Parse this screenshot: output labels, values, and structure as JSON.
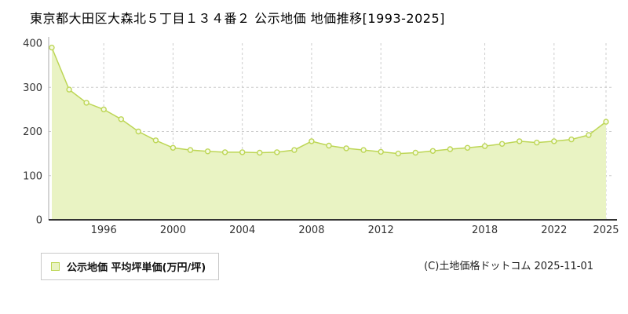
{
  "page": {
    "title": "東京都大田区大森北５丁目１３４番２ 公示地価 地価推移[1993-2025]",
    "copyright": "(C)土地価格ドットコム 2025-11-01"
  },
  "legend": {
    "label": "公示地価 平均坪単価(万円/坪)"
  },
  "chart_data": {
    "type": "area",
    "title": "東京都大田区大森北５丁目１３４番２ 公示地価 地価推移[1993-2025]",
    "xlabel": "",
    "ylabel": "平均坪単価(万円/坪)",
    "x": [
      1993,
      1994,
      1995,
      1996,
      1997,
      1998,
      1999,
      2000,
      2001,
      2002,
      2003,
      2004,
      2005,
      2006,
      2007,
      2008,
      2009,
      2010,
      2011,
      2012,
      2013,
      2014,
      2015,
      2016,
      2017,
      2018,
      2019,
      2020,
      2021,
      2022,
      2023,
      2024,
      2025
    ],
    "values": [
      390,
      295,
      265,
      250,
      228,
      200,
      180,
      163,
      158,
      155,
      153,
      153,
      152,
      153,
      158,
      178,
      168,
      162,
      158,
      154,
      150,
      152,
      156,
      160,
      163,
      167,
      172,
      178,
      175,
      178,
      182,
      192,
      222
    ],
    "ylim": [
      0,
      400
    ],
    "yticks": [
      0,
      100,
      200,
      300,
      400
    ],
    "xticks": [
      1996,
      2000,
      2004,
      2008,
      2012,
      2018,
      2022,
      2025
    ],
    "grid": "dashed",
    "legend_position": "bottom-left",
    "colors": {
      "fill": "#e9f3c3",
      "line": "#bdd655",
      "dot_fill": "#f5fae3",
      "grid": "#cccccc",
      "axis": "#333333",
      "text": "#333333"
    }
  }
}
